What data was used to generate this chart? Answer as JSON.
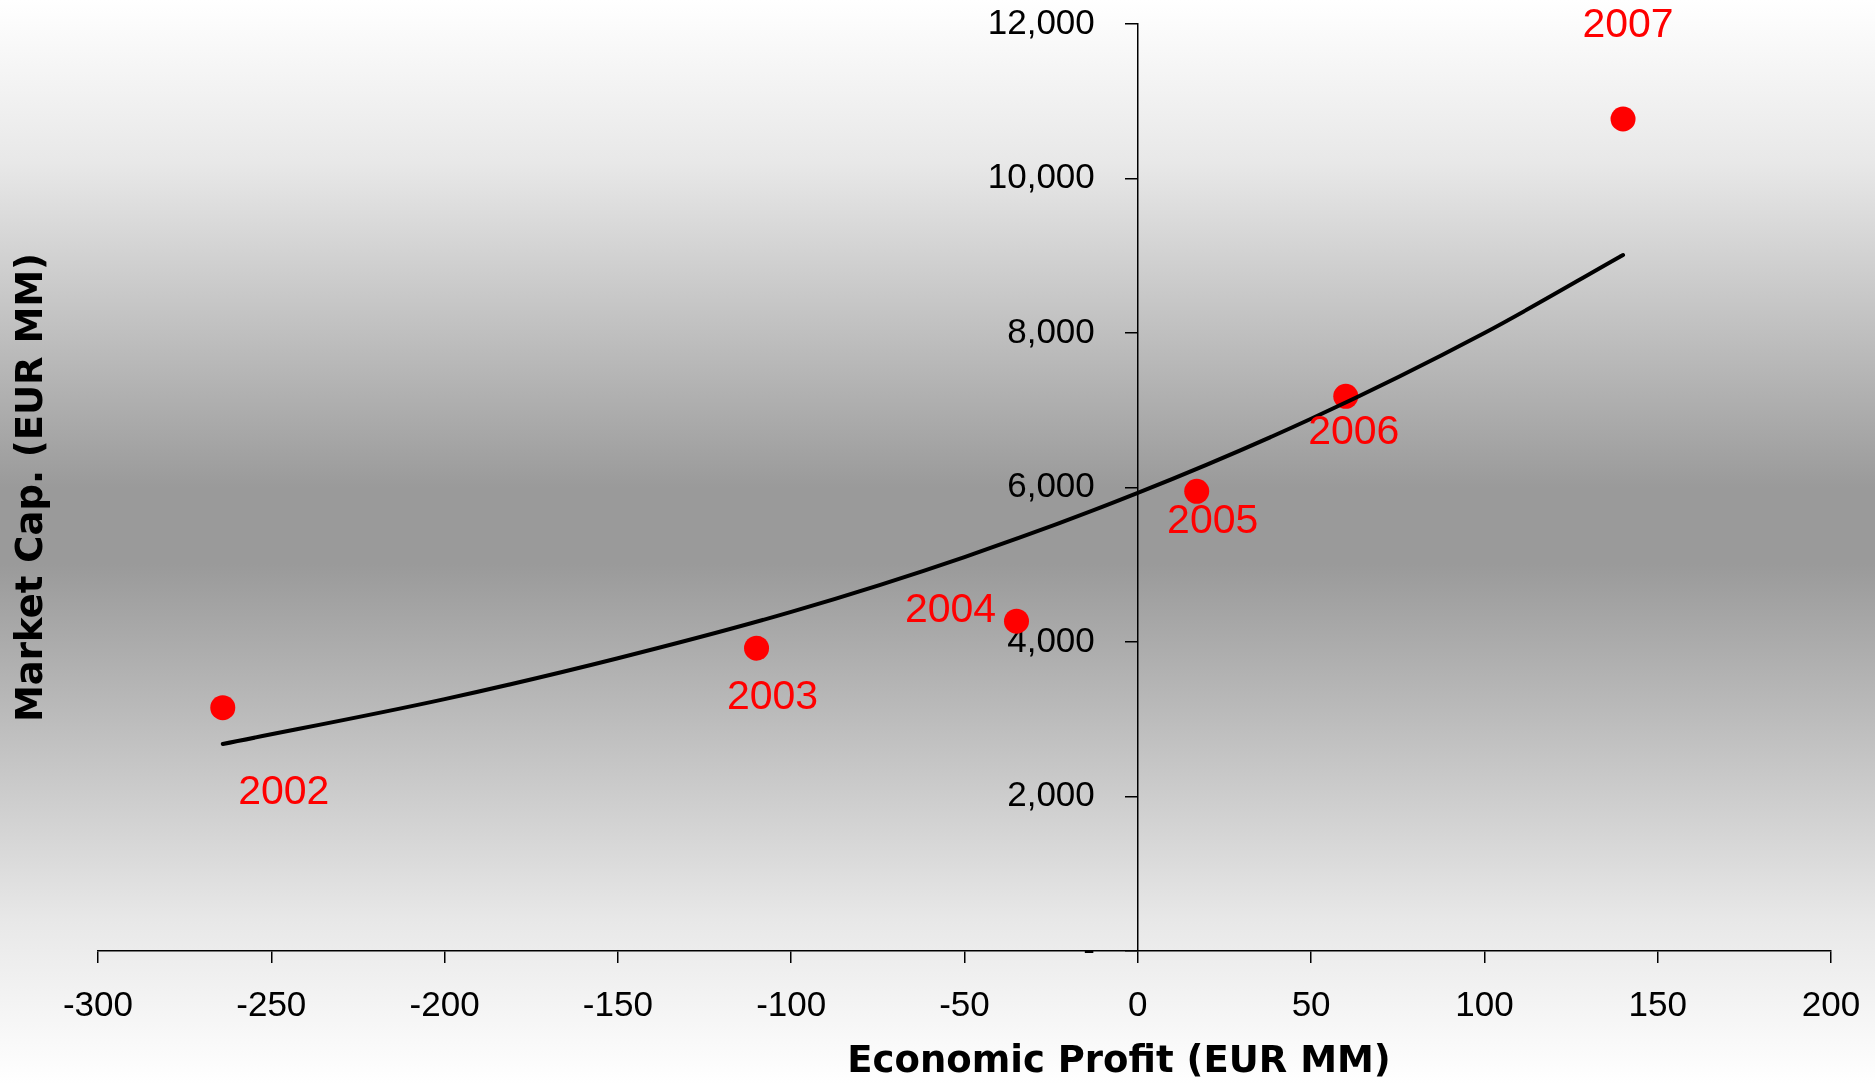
{
  "chart_data": {
    "type": "scatter",
    "xlabel": "Economic Profit (EUR MM)",
    "ylabel": "Market Cap. (EUR MM)",
    "series": [
      {
        "type": "scatter",
        "color": "#ff0000",
        "marker": "circle",
        "x": [
          -264,
          -110,
          -35,
          17,
          60,
          140
        ],
        "values": [
          3150,
          3920,
          4270,
          5950,
          7180,
          10770
        ]
      },
      {
        "type": "line",
        "color": "#000000",
        "marker": "none",
        "x": [
          -264,
          -200,
          -150,
          -100,
          -50,
          0,
          50,
          100,
          140
        ],
        "values": [
          2680,
          3260,
          3790,
          4390,
          5100,
          5930,
          6890,
          8000,
          9010
        ]
      }
    ],
    "xlim": [
      -300,
      200
    ],
    "xticks": [
      -300,
      -250,
      -200,
      -150,
      -100,
      -50,
      0,
      50,
      100,
      150,
      200
    ],
    "ylim": [
      0,
      12000
    ],
    "yticks": [
      {
        "value": 0,
        "label": "-"
      },
      {
        "value": 2000,
        "label": "2,000"
      },
      {
        "value": 4000,
        "label": "4,000"
      },
      {
        "value": 6000,
        "label": "6,000"
      },
      {
        "value": 8000,
        "label": "8,000"
      },
      {
        "value": 10000,
        "label": "10,000"
      },
      {
        "value": 12000,
        "label": "12,000"
      }
    ],
    "annotations": [
      {
        "text": "2002",
        "x": -264,
        "y": 3150
      },
      {
        "text": "2003",
        "x": -110,
        "y": 3920
      },
      {
        "text": "2004",
        "x": -35,
        "y": 4270
      },
      {
        "text": "2005",
        "x": 17,
        "y": 5950
      },
      {
        "text": "2006",
        "x": 60,
        "y": 7180
      },
      {
        "text": "2007",
        "x": 140,
        "y": 10770
      }
    ]
  }
}
